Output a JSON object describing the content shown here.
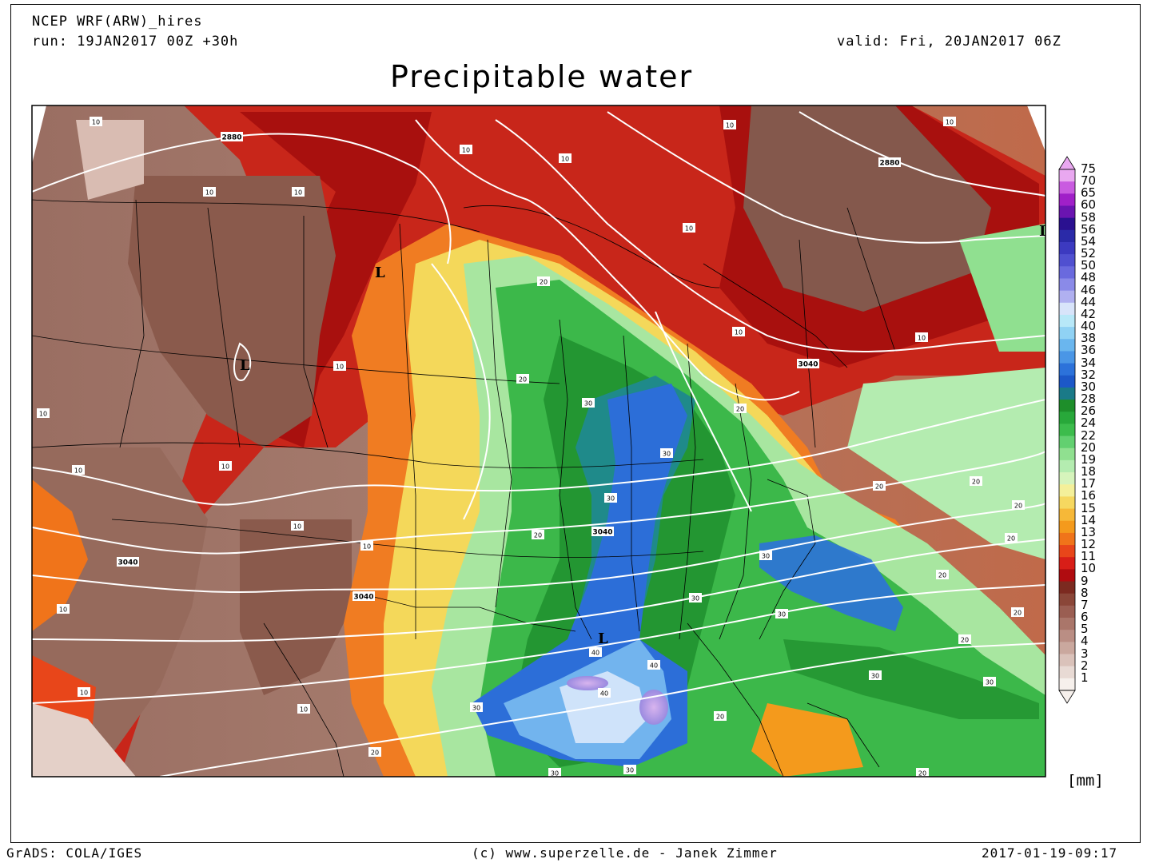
{
  "header": {
    "model": "NCEP WRF(ARW)_hires",
    "run": "run: 19JAN2017 00Z +30h",
    "valid": "valid: Fri, 20JAN2017 06Z",
    "title": "Precipitable water"
  },
  "legend": {
    "unit": "[mm]",
    "levels": [
      {
        "label": "75",
        "color": "#e9a8f0"
      },
      {
        "label": "70",
        "color": "#c95be0"
      },
      {
        "label": "65",
        "color": "#a020c8"
      },
      {
        "label": "60",
        "color": "#6a14b0"
      },
      {
        "label": "58",
        "color": "#2a1090"
      },
      {
        "label": "56",
        "color": "#2a2aa8"
      },
      {
        "label": "54",
        "color": "#3c3ac0"
      },
      {
        "label": "52",
        "color": "#5050d0"
      },
      {
        "label": "50",
        "color": "#6a6ade"
      },
      {
        "label": "48",
        "color": "#8a8ae8"
      },
      {
        "label": "46",
        "color": "#b0b0f0"
      },
      {
        "label": "44",
        "color": "#d8e4fa"
      },
      {
        "label": "42",
        "color": "#b8e8f8"
      },
      {
        "label": "40",
        "color": "#90d2f4"
      },
      {
        "label": "38",
        "color": "#6ab6ee"
      },
      {
        "label": "36",
        "color": "#4a96e6"
      },
      {
        "label": "34",
        "color": "#2c72da"
      },
      {
        "label": "32",
        "color": "#1c58c8"
      },
      {
        "label": "30",
        "color": "#1a7a88"
      },
      {
        "label": "28",
        "color": "#1e8e2a"
      },
      {
        "label": "26",
        "color": "#28a83a"
      },
      {
        "label": "24",
        "color": "#3cbc4c"
      },
      {
        "label": "22",
        "color": "#62d070"
      },
      {
        "label": "20",
        "color": "#90e090"
      },
      {
        "label": "19",
        "color": "#b4ecb0"
      },
      {
        "label": "18",
        "color": "#d6f4bc"
      },
      {
        "label": "17",
        "color": "#f4f09a"
      },
      {
        "label": "16",
        "color": "#f6d860"
      },
      {
        "label": "15",
        "color": "#f6b838"
      },
      {
        "label": "14",
        "color": "#f49a1c"
      },
      {
        "label": "13",
        "color": "#f0741a"
      },
      {
        "label": "12",
        "color": "#e8461a"
      },
      {
        "label": "11",
        "color": "#d81e18"
      },
      {
        "label": "10",
        "color": "#b00c10"
      },
      {
        "label": "9",
        "color": "#7c2a20"
      },
      {
        "label": "8",
        "color": "#8a4638"
      },
      {
        "label": "7",
        "color": "#9a5e52"
      },
      {
        "label": "6",
        "color": "#aa766a"
      },
      {
        "label": "5",
        "color": "#ba8e84"
      },
      {
        "label": "4",
        "color": "#caa89e"
      },
      {
        "label": "3",
        "color": "#dac2ba"
      },
      {
        "label": "2",
        "color": "#e8dad4"
      },
      {
        "label": "1",
        "color": "#f6f0ec"
      }
    ]
  },
  "map": {
    "contour_labels": [
      "10",
      "20",
      "30",
      "40",
      "2880",
      "3040"
    ],
    "low_marker": "L"
  },
  "footer": {
    "left": "GrADS: COLA/IGES",
    "center": "(c) www.superzelle.de - Janek Zimmer",
    "right": "2017-01-19-09:17"
  }
}
